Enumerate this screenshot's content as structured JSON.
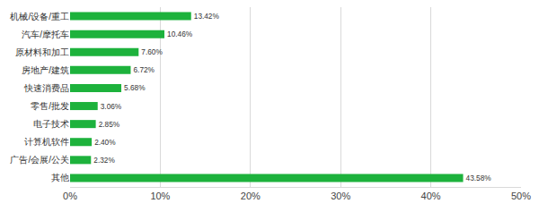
{
  "chart_data": {
    "type": "bar",
    "orientation": "horizontal",
    "categories": [
      "机械/设备/重工",
      "汽车/摩托车",
      "原材料和加工",
      "房地产/建筑",
      "快速消费品",
      "零售/批发",
      "电子技术",
      "计算机软件",
      "广告/会展/公关",
      "其他"
    ],
    "values": [
      13.42,
      10.46,
      7.6,
      6.72,
      5.68,
      3.06,
      2.85,
      2.4,
      2.32,
      43.58
    ],
    "value_labels": [
      "13.42%",
      "10.46%",
      "7.60%",
      "6.72%",
      "5.68%",
      "3.06%",
      "2.85%",
      "2.40%",
      "2.32%",
      "43.58%"
    ],
    "color": "#1db23c",
    "xlim": [
      0,
      50
    ],
    "xticks": [
      {
        "value": 0,
        "label": "0%"
      },
      {
        "value": 10,
        "label": "10%"
      },
      {
        "value": 20,
        "label": "20%"
      },
      {
        "value": 30,
        "label": "30%"
      },
      {
        "value": 40,
        "label": "40%"
      },
      {
        "value": 50,
        "label": "50%"
      }
    ],
    "grid": true,
    "data_labels": true
  }
}
